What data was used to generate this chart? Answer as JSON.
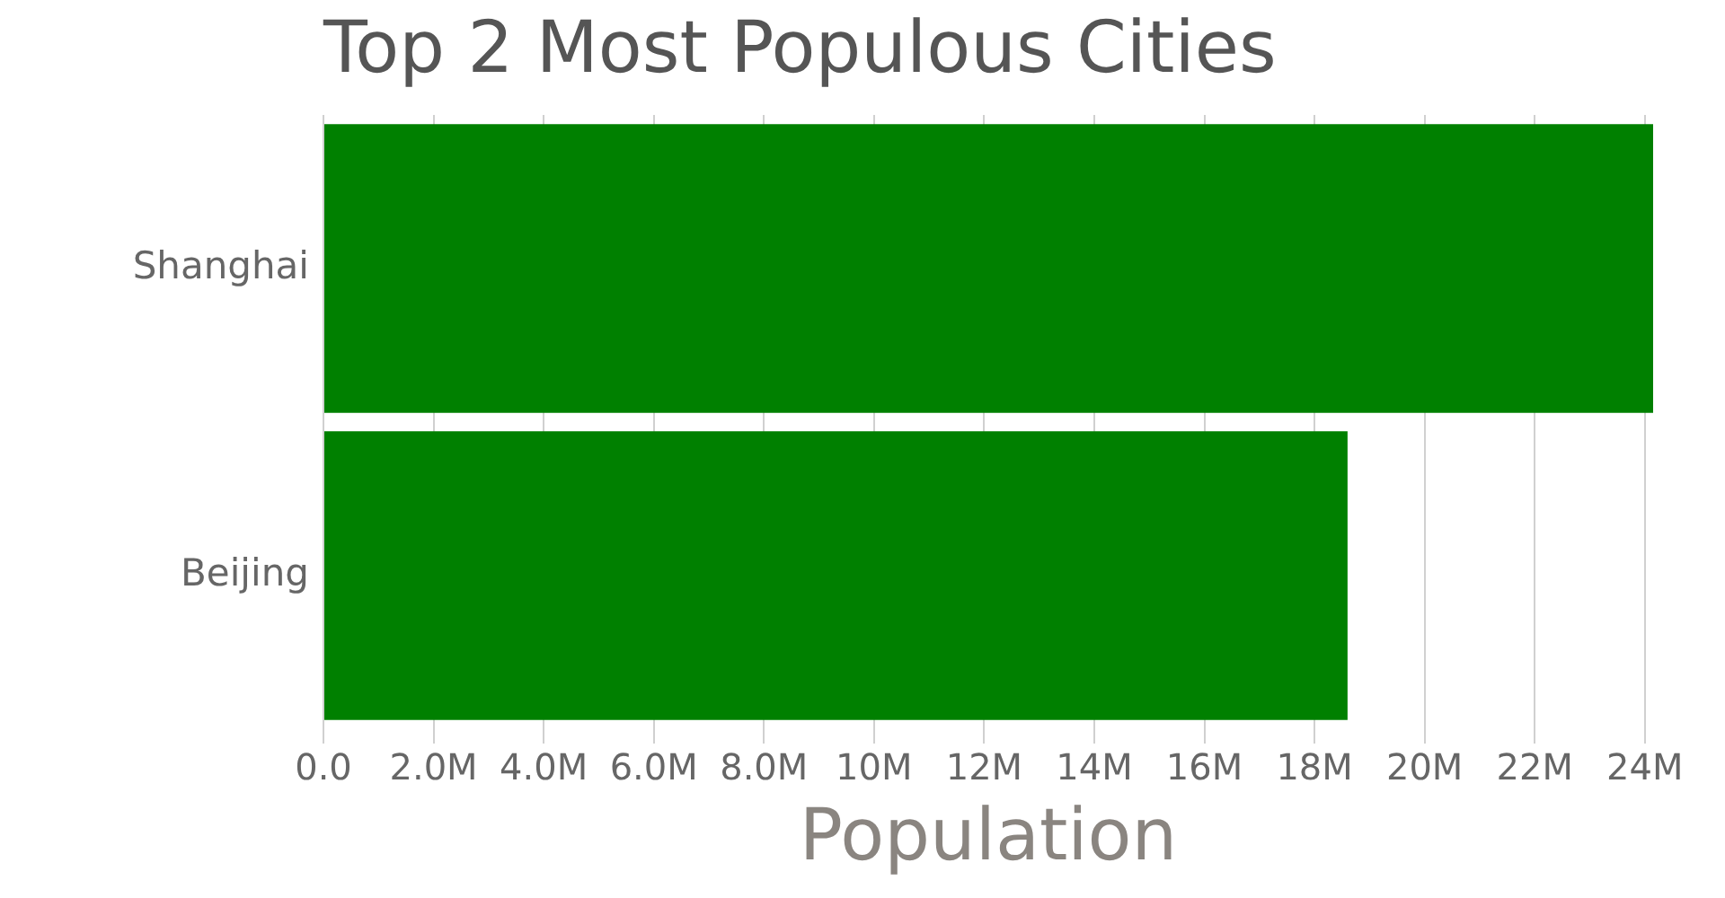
{
  "chart_data": {
    "type": "bar",
    "orientation": "horizontal",
    "title": "Top 2 Most Populous Cities",
    "xlabel": "Population",
    "categories": [
      "Shanghai",
      "Beijing"
    ],
    "series": [
      {
        "color": "#008000",
        "values": [
          24150000,
          18600000
        ]
      }
    ],
    "xlim": [
      0,
      24150000
    ],
    "xticks": [
      {
        "value": 0,
        "label": "0.0"
      },
      {
        "value": 2000000,
        "label": "2.0M"
      },
      {
        "value": 4000000,
        "label": "4.0M"
      },
      {
        "value": 6000000,
        "label": "6.0M"
      },
      {
        "value": 8000000,
        "label": "8.0M"
      },
      {
        "value": 10000000,
        "label": "10M"
      },
      {
        "value": 12000000,
        "label": "12M"
      },
      {
        "value": 14000000,
        "label": "14M"
      },
      {
        "value": 16000000,
        "label": "16M"
      },
      {
        "value": 18000000,
        "label": "18M"
      },
      {
        "value": 20000000,
        "label": "20M"
      },
      {
        "value": 22000000,
        "label": "22M"
      },
      {
        "value": 24000000,
        "label": "24M"
      }
    ],
    "grid": "x",
    "legend": false
  }
}
